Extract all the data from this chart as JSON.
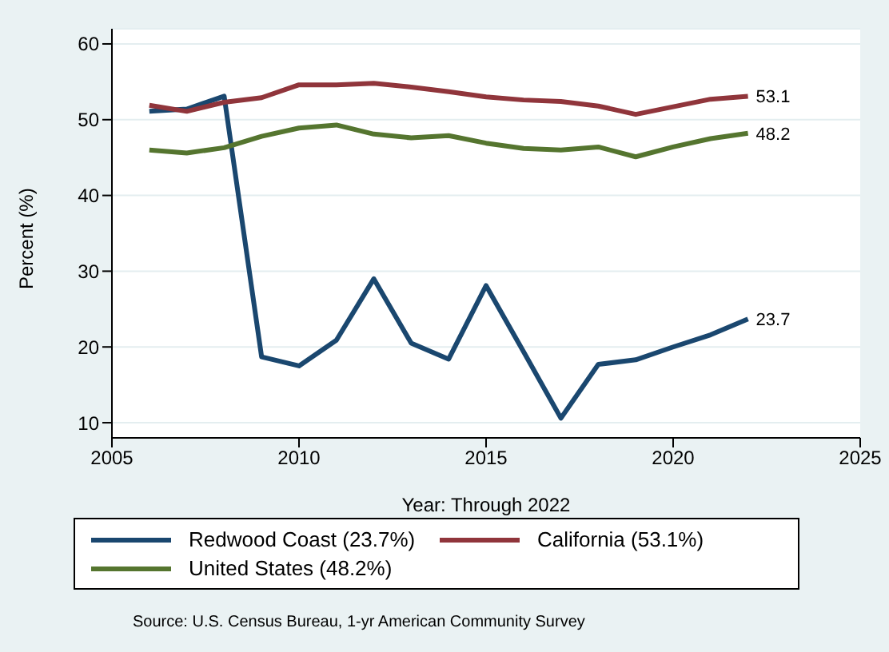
{
  "chart_data": {
    "type": "line",
    "xlabel": "Year: Through 2022",
    "ylabel": "Percent (%)",
    "x": [
      2006,
      2007,
      2008,
      2009,
      2010,
      2011,
      2012,
      2013,
      2014,
      2015,
      2016,
      2017,
      2018,
      2019,
      2020,
      2021,
      2022
    ],
    "series": [
      {
        "name": "Redwood Coast (23.7%)",
        "color": "#1a476f",
        "values": [
          51.1,
          51.4,
          53.1,
          18.7,
          17.5,
          20.9,
          29.0,
          20.5,
          18.4,
          28.1,
          19.4,
          10.6,
          17.7,
          18.3,
          20.0,
          21.6,
          23.7
        ],
        "value_labels": [
          null,
          null,
          null,
          null,
          null,
          null,
          null,
          null,
          null,
          null,
          null,
          null,
          null,
          null,
          null,
          null,
          "23.7"
        ]
      },
      {
        "name": "California (53.1%)",
        "color": "#90353b",
        "values": [
          51.9,
          51.1,
          52.3,
          52.9,
          54.6,
          54.6,
          54.8,
          54.3,
          53.7,
          53.0,
          52.6,
          52.4,
          51.8,
          50.7,
          51.7,
          52.7,
          53.1
        ],
        "value_labels": [
          null,
          null,
          null,
          null,
          null,
          null,
          null,
          null,
          null,
          null,
          null,
          null,
          null,
          null,
          null,
          null,
          "53.1"
        ]
      },
      {
        "name": "United States (48.2%)",
        "color": "#55752f",
        "values": [
          46.0,
          45.6,
          46.3,
          47.8,
          48.9,
          49.3,
          48.1,
          47.6,
          47.9,
          46.9,
          46.2,
          46.0,
          46.4,
          45.1,
          46.4,
          47.5,
          48.2
        ],
        "value_labels": [
          null,
          null,
          null,
          null,
          null,
          null,
          null,
          null,
          null,
          null,
          null,
          null,
          null,
          null,
          null,
          null,
          "48.2"
        ]
      }
    ],
    "xlim": [
      2005,
      2025
    ],
    "xticks": [
      2005,
      2010,
      2015,
      2020,
      2025
    ],
    "ylim": [
      8,
      62
    ],
    "yticks": [
      10,
      20,
      30,
      40,
      50,
      60
    ],
    "grid": "y",
    "legend": "bottom",
    "marker": "none",
    "line_style": "solid",
    "annotations": [
      "Source: U.S. Census Bureau, 1-yr American Community Survey"
    ]
  }
}
